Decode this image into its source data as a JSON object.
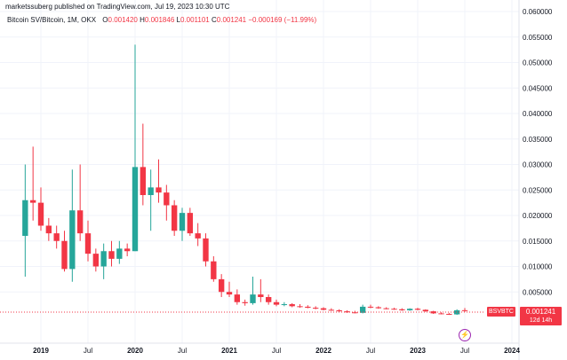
{
  "header": {
    "published_line": "marketssuberg published on TradingView.com, Jul 19, 2023 10:30 UTC"
  },
  "legend": {
    "symbol": "Bitcoin SV/Bitcoin, 1M, OKX",
    "o_key": "O",
    "o_val": "0.001420",
    "h_key": "H",
    "h_val": "0.001846",
    "l_key": "L",
    "l_val": "0.001101",
    "c_key": "C",
    "c_val": "0.001241",
    "change": "−0.000169 (−11.99%)"
  },
  "price_axis": {
    "labels": [
      "0.060000",
      "0.055000",
      "0.050000",
      "0.045000",
      "0.040000",
      "0.035000",
      "0.030000",
      "0.025000",
      "0.020000",
      "0.015000",
      "0.010000",
      "0.005000"
    ]
  },
  "time_axis": {
    "labels": [
      {
        "text": "2019",
        "bold": true
      },
      {
        "text": "Jul",
        "bold": false
      },
      {
        "text": "2020",
        "bold": true
      },
      {
        "text": "Jul",
        "bold": false
      },
      {
        "text": "2021",
        "bold": true
      },
      {
        "text": "Jul",
        "bold": false
      },
      {
        "text": "2022",
        "bold": true
      },
      {
        "text": "Jul",
        "bold": false
      },
      {
        "text": "2023",
        "bold": true
      },
      {
        "text": "Jul",
        "bold": false
      },
      {
        "text": "2024",
        "bold": true
      }
    ]
  },
  "badges": {
    "symbol_tag": "BSVBTC",
    "last_price": "0.001241",
    "countdown": "12d 14h"
  },
  "icons": {
    "replay": "lightning-icon"
  },
  "colors": {
    "up": "#26a69a",
    "down": "#f23645",
    "axis_text": "#131722",
    "grid": "#f0f3fa"
  },
  "chart_data": {
    "type": "candlestick",
    "title": "Bitcoin SV/Bitcoin, 1M, OKX",
    "xlabel": "",
    "ylabel": "",
    "ylim": [
      0,
      0.06
    ],
    "y_scale": "linear",
    "grid": true,
    "candles": [
      {
        "date": "2018-11",
        "open": 0.016,
        "high": 0.03,
        "low": 0.008,
        "close": 0.023
      },
      {
        "date": "2018-12",
        "open": 0.023,
        "high": 0.0335,
        "low": 0.019,
        "close": 0.0225
      },
      {
        "date": "2019-01",
        "open": 0.0225,
        "high": 0.0255,
        "low": 0.017,
        "close": 0.018
      },
      {
        "date": "2019-02",
        "open": 0.018,
        "high": 0.0195,
        "low": 0.015,
        "close": 0.0165
      },
      {
        "date": "2019-03",
        "open": 0.0165,
        "high": 0.018,
        "low": 0.0135,
        "close": 0.015
      },
      {
        "date": "2019-04",
        "open": 0.015,
        "high": 0.017,
        "low": 0.009,
        "close": 0.0095
      },
      {
        "date": "2019-05",
        "open": 0.0095,
        "high": 0.029,
        "low": 0.007,
        "close": 0.021
      },
      {
        "date": "2019-06",
        "open": 0.021,
        "high": 0.03,
        "low": 0.015,
        "close": 0.0165
      },
      {
        "date": "2019-07",
        "open": 0.0165,
        "high": 0.019,
        "low": 0.011,
        "close": 0.0125
      },
      {
        "date": "2019-08",
        "open": 0.0125,
        "high": 0.0135,
        "low": 0.009,
        "close": 0.01
      },
      {
        "date": "2019-09",
        "open": 0.01,
        "high": 0.0145,
        "low": 0.0075,
        "close": 0.013
      },
      {
        "date": "2019-10",
        "open": 0.013,
        "high": 0.015,
        "low": 0.01,
        "close": 0.0115
      },
      {
        "date": "2019-11",
        "open": 0.0115,
        "high": 0.015,
        "low": 0.0105,
        "close": 0.0135
      },
      {
        "date": "2019-12",
        "open": 0.0135,
        "high": 0.0145,
        "low": 0.012,
        "close": 0.013
      },
      {
        "date": "2020-01",
        "open": 0.013,
        "high": 0.0535,
        "low": 0.013,
        "close": 0.0295
      },
      {
        "date": "2020-02",
        "open": 0.0295,
        "high": 0.038,
        "low": 0.022,
        "close": 0.024
      },
      {
        "date": "2020-03",
        "open": 0.024,
        "high": 0.029,
        "low": 0.017,
        "close": 0.0255
      },
      {
        "date": "2020-04",
        "open": 0.0255,
        "high": 0.031,
        "low": 0.0225,
        "close": 0.0245
      },
      {
        "date": "2020-05",
        "open": 0.0245,
        "high": 0.026,
        "low": 0.019,
        "close": 0.022
      },
      {
        "date": "2020-06",
        "open": 0.022,
        "high": 0.023,
        "low": 0.016,
        "close": 0.017
      },
      {
        "date": "2020-07",
        "open": 0.017,
        "high": 0.0215,
        "low": 0.015,
        "close": 0.0205
      },
      {
        "date": "2020-08",
        "open": 0.0205,
        "high": 0.0215,
        "low": 0.016,
        "close": 0.0165
      },
      {
        "date": "2020-09",
        "open": 0.0165,
        "high": 0.0185,
        "low": 0.014,
        "close": 0.0155
      },
      {
        "date": "2020-10",
        "open": 0.0155,
        "high": 0.0165,
        "low": 0.01,
        "close": 0.011
      },
      {
        "date": "2020-11",
        "open": 0.011,
        "high": 0.012,
        "low": 0.007,
        "close": 0.0075
      },
      {
        "date": "2020-12",
        "open": 0.0075,
        "high": 0.0085,
        "low": 0.004,
        "close": 0.005
      },
      {
        "date": "2021-01",
        "open": 0.005,
        "high": 0.007,
        "low": 0.004,
        "close": 0.0045
      },
      {
        "date": "2021-02",
        "open": 0.0045,
        "high": 0.0055,
        "low": 0.0025,
        "close": 0.003
      },
      {
        "date": "2021-03",
        "open": 0.003,
        "high": 0.0035,
        "low": 0.0023,
        "close": 0.0028
      },
      {
        "date": "2021-04",
        "open": 0.0028,
        "high": 0.008,
        "low": 0.0025,
        "close": 0.0045
      },
      {
        "date": "2021-05",
        "open": 0.0045,
        "high": 0.0075,
        "low": 0.003,
        "close": 0.004
      },
      {
        "date": "2021-06",
        "open": 0.004,
        "high": 0.0045,
        "low": 0.0025,
        "close": 0.003
      },
      {
        "date": "2021-07",
        "open": 0.003,
        "high": 0.0035,
        "low": 0.0022,
        "close": 0.0025
      },
      {
        "date": "2021-08",
        "open": 0.0025,
        "high": 0.003,
        "low": 0.0022,
        "close": 0.0026
      },
      {
        "date": "2021-09",
        "open": 0.0026,
        "high": 0.0028,
        "low": 0.002,
        "close": 0.0022
      },
      {
        "date": "2021-10",
        "open": 0.0022,
        "high": 0.0026,
        "low": 0.0019,
        "close": 0.0021
      },
      {
        "date": "2021-11",
        "open": 0.0021,
        "high": 0.0024,
        "low": 0.0018,
        "close": 0.0019
      },
      {
        "date": "2021-12",
        "open": 0.0019,
        "high": 0.0022,
        "low": 0.0016,
        "close": 0.0018
      },
      {
        "date": "2022-01",
        "open": 0.0018,
        "high": 0.002,
        "low": 0.0014,
        "close": 0.0015
      },
      {
        "date": "2022-02",
        "open": 0.0015,
        "high": 0.0018,
        "low": 0.0013,
        "close": 0.0014
      },
      {
        "date": "2022-03",
        "open": 0.0014,
        "high": 0.0016,
        "low": 0.0011,
        "close": 0.0012
      },
      {
        "date": "2022-04",
        "open": 0.0012,
        "high": 0.0014,
        "low": 0.0009,
        "close": 0.001
      },
      {
        "date": "2022-05",
        "open": 0.001,
        "high": 0.0013,
        "low": 0.0008,
        "close": 0.0009
      },
      {
        "date": "2022-06",
        "open": 0.0009,
        "high": 0.0025,
        "low": 0.0008,
        "close": 0.0021
      },
      {
        "date": "2022-07",
        "open": 0.0021,
        "high": 0.0025,
        "low": 0.0018,
        "close": 0.002
      },
      {
        "date": "2022-08",
        "open": 0.002,
        "high": 0.0022,
        "low": 0.0017,
        "close": 0.0018
      },
      {
        "date": "2022-09",
        "open": 0.0018,
        "high": 0.002,
        "low": 0.0016,
        "close": 0.0017
      },
      {
        "date": "2022-10",
        "open": 0.0017,
        "high": 0.0019,
        "low": 0.0015,
        "close": 0.0016
      },
      {
        "date": "2022-11",
        "open": 0.0016,
        "high": 0.0018,
        "low": 0.0013,
        "close": 0.0014
      },
      {
        "date": "2022-12",
        "open": 0.0014,
        "high": 0.0018,
        "low": 0.0013,
        "close": 0.0017
      },
      {
        "date": "2023-01",
        "open": 0.0017,
        "high": 0.0019,
        "low": 0.0014,
        "close": 0.0015
      },
      {
        "date": "2023-02",
        "open": 0.0015,
        "high": 0.0016,
        "low": 0.0011,
        "close": 0.0012
      },
      {
        "date": "2023-03",
        "open": 0.0012,
        "high": 0.0013,
        "low": 0.0007,
        "close": 0.0008
      },
      {
        "date": "2023-04",
        "open": 0.0008,
        "high": 0.001,
        "low": 0.0006,
        "close": 0.0007
      },
      {
        "date": "2023-05",
        "open": 0.0007,
        "high": 0.0009,
        "low": 0.0005,
        "close": 0.0006
      },
      {
        "date": "2023-06",
        "open": 0.0006,
        "high": 0.0016,
        "low": 0.0005,
        "close": 0.0014
      },
      {
        "date": "2023-07",
        "open": 0.00142,
        "high": 0.001846,
        "low": 0.001101,
        "close": 0.001241
      }
    ]
  }
}
